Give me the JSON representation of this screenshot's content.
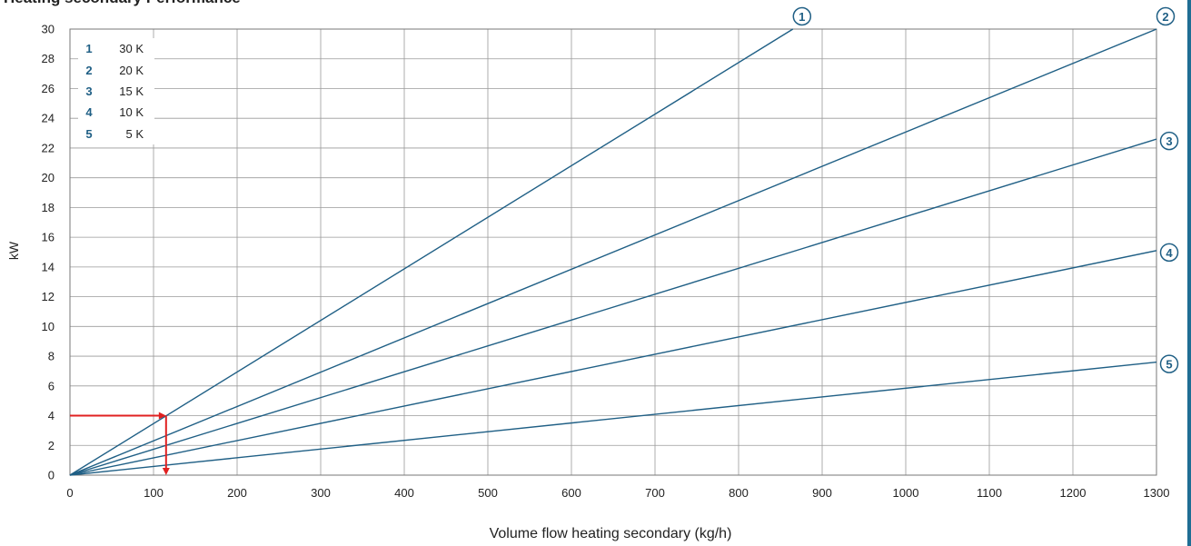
{
  "page": {
    "title": "Heating secondary Performance"
  },
  "chart_data": {
    "type": "line",
    "title": "Heating secondary Performance",
    "xlabel": "Volume flow heating secondary (kg/h)",
    "ylabel": "kW",
    "xlim": [
      0,
      1300
    ],
    "ylim": [
      0,
      30
    ],
    "xticks": [
      0,
      100,
      200,
      300,
      400,
      500,
      600,
      700,
      800,
      900,
      1000,
      1100,
      1200,
      1300
    ],
    "yticks": [
      0,
      2,
      4,
      6,
      8,
      10,
      12,
      14,
      16,
      18,
      20,
      22,
      24,
      26,
      28,
      30
    ],
    "grid": true,
    "legend_position": "top-left",
    "line_color": "#1f5f85",
    "marker_color": "#1f5f85",
    "series": [
      {
        "id": "1",
        "name": "30 K",
        "x": [
          0,
          865
        ],
        "y": [
          0,
          30
        ]
      },
      {
        "id": "2",
        "name": "20 K",
        "x": [
          0,
          1300
        ],
        "y": [
          0,
          30
        ]
      },
      {
        "id": "3",
        "name": "15 K",
        "x": [
          0,
          1300
        ],
        "y": [
          0,
          22.6
        ]
      },
      {
        "id": "4",
        "name": "10 K",
        "x": [
          0,
          1300
        ],
        "y": [
          0,
          15.1
        ]
      },
      {
        "id": "5",
        "name": "5 K",
        "x": [
          0,
          1300
        ],
        "y": [
          0,
          7.6
        ]
      }
    ],
    "example": {
      "color": "#e02020",
      "from": {
        "x": 0,
        "y": 4
      },
      "corner": {
        "x": 115,
        "y": 4
      },
      "to": {
        "x": 115,
        "y": 0
      }
    }
  }
}
